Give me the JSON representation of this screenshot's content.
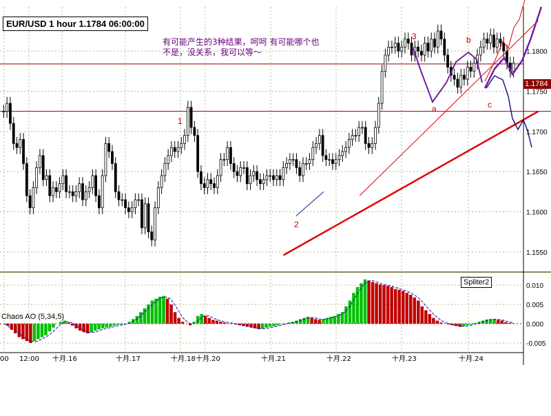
{
  "title": "EUR/USD 1 hour 1.1784 06:00:00",
  "note_lines": [
    "有可能产生的3种结果，呵呵 有可能哪个也",
    "不是，没关系，我可以等～"
  ],
  "indicator_label": "Chaos AO (5,34,5)",
  "spliter_label": "Spliter2",
  "current_price": "1.1784",
  "price_axis": [
    "1.1800",
    "1.1750",
    "1.1700",
    "1.1650",
    "1.1600",
    "1.1550"
  ],
  "ao_axis": [
    "0.010",
    "0.005",
    "0.000",
    "-0.005"
  ],
  "time_axis": [
    "00",
    "12:00",
    "十月.16",
    "十月.17",
    "十月.18",
    "十月.20",
    "十月.21",
    "十月.22",
    "十月.23",
    "十月.24"
  ],
  "wave_labels": [
    "1",
    "2",
    "3",
    "a",
    "b",
    "c"
  ],
  "colors": {
    "grid": "#b8b88a",
    "bull": "#00c000",
    "bear": "#c00000",
    "trend": "#e00000",
    "violet": "#7020a0",
    "navy": "#1a1a8a"
  },
  "chart_data": {
    "type": "candlestick",
    "title": "EUR/USD 1 hour 1.1784 06:00:00",
    "ylim": [
      1.1525,
      1.1855
    ],
    "ao_ylim": [
      -0.0075,
      0.0125
    ],
    "last_price": 1.1784,
    "closes": [
      1.1725,
      1.1735,
      1.171,
      1.1685,
      1.168,
      1.169,
      1.166,
      1.162,
      1.1605,
      1.163,
      1.1655,
      1.167,
      1.164,
      1.1645,
      1.162,
      1.163,
      1.1625,
      1.1635,
      1.1645,
      1.1625,
      1.1625,
      1.162,
      1.1625,
      1.1635,
      1.1615,
      1.1625,
      1.163,
      1.1645,
      1.162,
      1.1605,
      1.1645,
      1.1685,
      1.1675,
      1.166,
      1.1625,
      1.1615,
      1.1615,
      1.1605,
      1.16,
      1.1605,
      1.1615,
      1.1615,
      1.158,
      1.161,
      1.1575,
      1.1565,
      1.1605,
      1.163,
      1.1645,
      1.166,
      1.167,
      1.168,
      1.1675,
      1.168,
      1.1685,
      1.1695,
      1.173,
      1.1705,
      1.1695,
      1.165,
      1.1635,
      1.163,
      1.164,
      1.1635,
      1.163,
      1.1645,
      1.1665,
      1.1665,
      1.168,
      1.166,
      1.165,
      1.1645,
      1.1655,
      1.1655,
      1.1635,
      1.1645,
      1.165,
      1.164,
      1.1635,
      1.164,
      1.1645,
      1.1645,
      1.164,
      1.1645,
      1.164,
      1.1655,
      1.166,
      1.1665,
      1.1665,
      1.1655,
      1.1645,
      1.166,
      1.166,
      1.1665,
      1.168,
      1.1685,
      1.1695,
      1.167,
      1.1665,
      1.1665,
      1.166,
      1.1665,
      1.167,
      1.1675,
      1.168,
      1.169,
      1.1695,
      1.1695,
      1.1705,
      1.1705,
      1.1685,
      1.168,
      1.1685,
      1.1705,
      1.1735,
      1.1775,
      1.1795,
      1.1805,
      1.1805,
      1.181,
      1.18,
      1.1805,
      1.1815,
      1.181,
      1.1795,
      1.1805,
      1.18,
      1.1795,
      1.181,
      1.18,
      1.1815,
      1.1805,
      1.1825,
      1.1815,
      1.1795,
      1.178,
      1.177,
      1.1765,
      1.1755,
      1.177,
      1.1765,
      1.178,
      1.1775,
      1.1785,
      1.1795,
      1.1805,
      1.1815,
      1.181,
      1.182,
      1.1805,
      1.1815,
      1.181,
      1.18,
      1.1785,
      1.1775,
      1.1785
    ],
    "ao_values": [
      0,
      -0.0005,
      -0.0015,
      -0.0025,
      -0.0035,
      -0.004,
      -0.0045,
      -0.005,
      -0.0045,
      -0.004,
      -0.0035,
      -0.003,
      -0.002,
      -0.001,
      0,
      0.0005,
      0.0008,
      0.0003,
      -0.0005,
      -0.0012,
      -0.0018,
      -0.0022,
      -0.0025,
      -0.0022,
      -0.0018,
      -0.0015,
      -0.0012,
      -0.001,
      -0.0008,
      -0.0005,
      -0.0003,
      -0.0002,
      0,
      0.0005,
      0.0012,
      0.002,
      0.003,
      0.004,
      0.005,
      0.006,
      0.0065,
      0.007,
      0.0072,
      0.0065,
      0.005,
      0.003,
      0.0015,
      0.0005,
      0,
      -0.0004,
      0.0005,
      0.002,
      0.0025,
      0.002,
      0.0015,
      0.001,
      0.0008,
      0.0005,
      0.0003,
      0.0001,
      0.0001,
      -0.0002,
      -0.0004,
      -0.0006,
      -0.0008,
      -0.001,
      -0.0012,
      -0.0014,
      -0.0013,
      -0.001,
      -0.0008,
      -0.0006,
      -0.0004,
      -0.0001,
      0.0001,
      0.0003,
      0.0005,
      0.0008,
      0.0012,
      0.0015,
      0.0018,
      0.0015,
      0.0012,
      0.001,
      0.0012,
      0.0015,
      0.0018,
      0.002,
      0.0025,
      0.003,
      0.0045,
      0.006,
      0.008,
      0.0095,
      0.0105,
      0.0115,
      0.0112,
      0.0108,
      0.0105,
      0.0102,
      0.01,
      0.0098,
      0.0095,
      0.009,
      0.0088,
      0.0085,
      0.008,
      0.0075,
      0.0068,
      0.006,
      0.0045,
      0.0035,
      0.0025,
      0.0015,
      0.0008,
      0.0003,
      0,
      -0.0002,
      -0.0004,
      -0.0006,
      -0.0008,
      -0.0006,
      -0.0004,
      -0.0002,
      0.0002,
      0.0005,
      0.0008,
      0.0011,
      0.0012,
      0.0012,
      0.001,
      0.0008,
      0.0004,
      0.0002,
      0.0001
    ],
    "trendlines": [
      {
        "name": "main-support",
        "from": [
          17,
          1.1546
        ],
        "to": [
          29.9,
          1.1725
        ]
      },
      {
        "name": "channel",
        "from": [
          21.6,
          1.162
        ],
        "to": [
          29.9,
          1.1838
        ]
      }
    ],
    "hlines": [
      1.1784,
      1.1725
    ]
  }
}
